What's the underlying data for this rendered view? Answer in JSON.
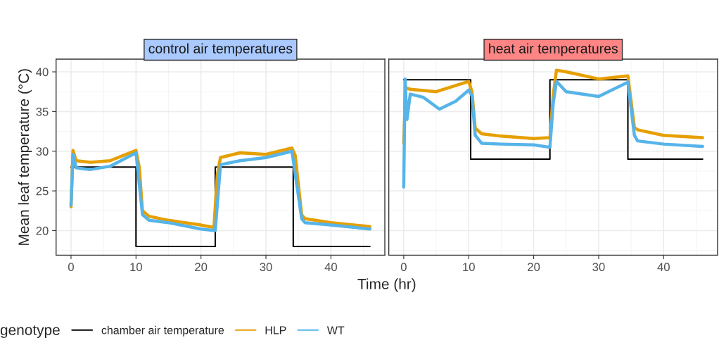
{
  "chart_data": [
    {
      "type": "line",
      "title": "control air temperatures",
      "xlabel": "Time (hr)",
      "ylabel": "Mean leaf temperature (°C)",
      "legend_title": "genotype",
      "legend": "bottom",
      "grid": true,
      "xlim": [
        -2.3,
        48.3
      ],
      "ylim": [
        16.9,
        41.6
      ],
      "xticks": [
        0,
        10,
        20,
        30,
        40
      ],
      "yticks": [
        20,
        25,
        30,
        35,
        40
      ],
      "series": [
        {
          "name": "chamber air temperature",
          "type": "step",
          "color": "#000000",
          "x": [
            0,
            10,
            22.2,
            34.2,
            46
          ],
          "values": [
            28,
            18,
            28,
            18,
            18
          ]
        },
        {
          "name": "HLP",
          "color": "#E69F00",
          "x": [
            0,
            0.3,
            0.8,
            3,
            6,
            10,
            10.5,
            11,
            12,
            15,
            20,
            22,
            22.5,
            23,
            26,
            30,
            34,
            34.5,
            35.5,
            36,
            40,
            46
          ],
          "values": [
            23,
            30.1,
            28.8,
            28.6,
            28.8,
            30.1,
            28,
            22.5,
            21.8,
            21.3,
            20.7,
            20.4,
            27,
            29.2,
            29.8,
            29.6,
            30.4,
            29.5,
            22,
            21.5,
            21.0,
            20.5
          ]
        },
        {
          "name": "WT",
          "color": "#56B4E9",
          "x": [
            0,
            0.3,
            0.8,
            3,
            6,
            10,
            11,
            12,
            15,
            20,
            22.2,
            23,
            26,
            30,
            34,
            35.5,
            36,
            40,
            46
          ],
          "values": [
            23.2,
            29.6,
            27.9,
            27.7,
            28.1,
            29.8,
            22,
            21.3,
            21.0,
            20.2,
            20.0,
            28.3,
            28.8,
            29.2,
            30.0,
            21.5,
            21.0,
            20.7,
            20.2
          ]
        }
      ]
    },
    {
      "type": "line",
      "title": "heat air temperatures",
      "grid": true,
      "tick_labels": "x",
      "xlim": [
        -2.3,
        48.3
      ],
      "ylim": [
        16.9,
        41.6
      ],
      "xticks": [
        0,
        10,
        20,
        30,
        40
      ],
      "yticks": [
        20,
        25,
        30,
        35,
        40
      ],
      "series": [
        {
          "name": "chamber air temperature",
          "type": "step",
          "color": "#000000",
          "x": [
            0,
            10.3,
            22.5,
            34.5,
            46
          ],
          "values": [
            39,
            29,
            39,
            29,
            29
          ]
        },
        {
          "name": "HLP",
          "color": "#E69F00",
          "x": [
            0,
            0.3,
            1,
            5,
            10,
            10.5,
            11,
            12,
            15,
            20,
            22.5,
            23,
            23.5,
            25,
            30,
            34.5,
            35.5,
            36,
            40,
            46
          ],
          "values": [
            31,
            38.0,
            37.8,
            37.5,
            38.8,
            37.5,
            32.9,
            32.2,
            31.9,
            31.6,
            31.7,
            37,
            40.2,
            40.0,
            39.1,
            39.5,
            33,
            32.7,
            32.0,
            31.7
          ]
        },
        {
          "name": "WT",
          "color": "#56B4E9",
          "x": [
            0,
            0.2,
            0.5,
            1,
            3,
            5.5,
            8,
            10,
            10.5,
            11,
            12,
            15,
            20,
            22.5,
            23,
            23.5,
            25,
            30,
            34.5,
            35.5,
            36,
            40,
            46
          ],
          "values": [
            25.5,
            39.1,
            34,
            37.2,
            36.8,
            35.3,
            36.3,
            37.7,
            37,
            32.0,
            31.0,
            30.9,
            30.8,
            30.5,
            36,
            38.8,
            37.5,
            36.9,
            38.7,
            32,
            31.3,
            30.9,
            30.6
          ]
        }
      ]
    }
  ]
}
